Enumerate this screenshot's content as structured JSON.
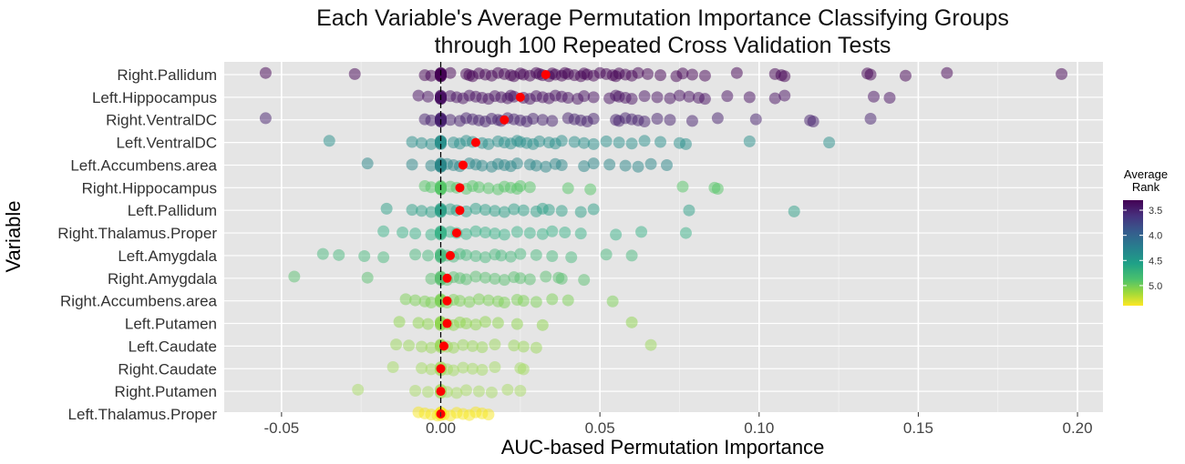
{
  "chart_data": {
    "type": "scatter",
    "title_line1": "Each Variable's Average Permutation Importance Classifying Groups",
    "title_line2": "through 100 Repeated Cross Validation Tests",
    "xlabel": "AUC-based Permutation Importance",
    "ylabel": "Variable",
    "xlim": [
      -0.068,
      0.208
    ],
    "x_ticks": [
      {
        "value": -0.05,
        "label": "-0.05"
      },
      {
        "value": 0.0,
        "label": "0.00"
      },
      {
        "value": 0.05,
        "label": "0.05"
      },
      {
        "value": 0.1,
        "label": "0.10"
      },
      {
        "value": 0.15,
        "label": "0.15"
      },
      {
        "value": 0.2,
        "label": "0.20"
      }
    ],
    "grid": true,
    "background": "#e5e5e5",
    "mean_marker_color": "#ff0000",
    "zero_line": true,
    "legend": {
      "title_line1": "Average",
      "title_line2": "Rank",
      "position": "right",
      "range": [
        3.3,
        5.4
      ],
      "ticks": [
        {
          "value": 3.5,
          "label": "3.5"
        },
        {
          "value": 4.0,
          "label": "4.0"
        },
        {
          "value": 4.5,
          "label": "4.5"
        },
        {
          "value": 5.0,
          "label": "5.0"
        }
      ],
      "colormap": "viridis-reversed"
    },
    "variables": [
      {
        "name": "Right.Pallidum",
        "color": "#440154",
        "mean": 0.033,
        "points": [
          -0.055,
          -0.027,
          -0.005,
          0.0,
          0.0,
          0.0,
          0.0,
          0.0,
          0.0,
          0.0,
          0.0,
          0.0,
          0.0,
          -0.003,
          0.003,
          0.008,
          0.009,
          0.01,
          0.012,
          0.014,
          0.016,
          0.018,
          0.02,
          0.022,
          0.023,
          0.025,
          0.026,
          0.028,
          0.03,
          0.031,
          0.032,
          0.034,
          0.035,
          0.036,
          0.038,
          0.039,
          0.04,
          0.042,
          0.044,
          0.045,
          0.046,
          0.048,
          0.05,
          0.052,
          0.054,
          0.055,
          0.056,
          0.058,
          0.06,
          0.062,
          0.065,
          0.069,
          0.074,
          0.076,
          0.079,
          0.083,
          0.093,
          0.105,
          0.107,
          0.108,
          0.134,
          0.135,
          0.146,
          0.159,
          0.195
        ]
      },
      {
        "name": "Left.Hippocampus",
        "color": "#470f62",
        "mean": 0.025,
        "points": [
          -0.007,
          -0.004,
          0.0,
          0.0,
          0.0,
          0.0,
          0.0,
          0.0,
          0.0,
          0.0,
          0.0,
          0.003,
          0.005,
          0.007,
          0.009,
          0.011,
          0.013,
          0.015,
          0.017,
          0.019,
          0.021,
          0.022,
          0.023,
          0.026,
          0.028,
          0.03,
          0.032,
          0.034,
          0.036,
          0.038,
          0.04,
          0.043,
          0.045,
          0.048,
          0.053,
          0.055,
          0.056,
          0.058,
          0.06,
          0.064,
          0.068,
          0.072,
          0.075,
          0.078,
          0.081,
          0.083,
          0.09,
          0.097,
          0.105,
          0.108,
          0.136,
          0.141
        ]
      },
      {
        "name": "Right.VentralDC",
        "color": "#45206d",
        "mean": 0.02,
        "points": [
          -0.055,
          -0.005,
          -0.003,
          0.0,
          0.0,
          0.0,
          0.0,
          0.0,
          0.0,
          0.0,
          0.0,
          0.0,
          0.003,
          0.006,
          0.008,
          0.01,
          0.012,
          0.014,
          0.016,
          0.018,
          0.019,
          0.021,
          0.023,
          0.025,
          0.027,
          0.029,
          0.032,
          0.035,
          0.04,
          0.042,
          0.044,
          0.046,
          0.048,
          0.055,
          0.056,
          0.058,
          0.06,
          0.062,
          0.064,
          0.068,
          0.072,
          0.079,
          0.087,
          0.099,
          0.116,
          0.117,
          0.135
        ]
      },
      {
        "name": "Left.VentralDC",
        "color": "#2a8f8b",
        "mean": 0.011,
        "points": [
          -0.035,
          -0.009,
          -0.006,
          -0.003,
          0.0,
          0.0,
          0.0,
          0.0,
          0.0,
          0.0,
          0.0,
          0.0,
          0.004,
          0.006,
          0.008,
          0.01,
          0.013,
          0.015,
          0.018,
          0.02,
          0.022,
          0.024,
          0.025,
          0.027,
          0.029,
          0.031,
          0.034,
          0.036,
          0.038,
          0.042,
          0.045,
          0.048,
          0.052,
          0.056,
          0.06,
          0.064,
          0.069,
          0.075,
          0.077,
          0.097,
          0.122
        ]
      },
      {
        "name": "Left.Accumbens.area",
        "color": "#2a8688",
        "mean": 0.007,
        "points": [
          -0.023,
          -0.009,
          -0.003,
          0.0,
          0.0,
          0.0,
          0.0,
          0.0,
          0.0,
          0.0,
          0.0,
          0.002,
          0.004,
          0.006,
          0.009,
          0.011,
          0.013,
          0.016,
          0.018,
          0.02,
          0.022,
          0.024,
          0.028,
          0.03,
          0.033,
          0.036,
          0.038,
          0.045,
          0.048,
          0.053,
          0.058,
          0.062,
          0.066,
          0.071
        ]
      },
      {
        "name": "Right.Hippocampus",
        "color": "#56c667",
        "mean": 0.006,
        "points": [
          -0.005,
          -0.003,
          0.0,
          0.0,
          0.0,
          0.0,
          0.0,
          0.0,
          0.0,
          0.0,
          0.0,
          0.003,
          0.005,
          0.008,
          0.01,
          0.012,
          0.015,
          0.018,
          0.02,
          0.022,
          0.024,
          0.025,
          0.028,
          0.04,
          0.047,
          0.076,
          0.086,
          0.087
        ]
      },
      {
        "name": "Left.Pallidum",
        "color": "#2e9f87",
        "mean": 0.006,
        "points": [
          -0.017,
          -0.009,
          -0.006,
          -0.003,
          0.0,
          0.0,
          0.0,
          0.0,
          0.0,
          0.0,
          0.0,
          0.003,
          0.005,
          0.008,
          0.011,
          0.014,
          0.017,
          0.02,
          0.023,
          0.026,
          0.03,
          0.032,
          0.034,
          0.038,
          0.044,
          0.048,
          0.078,
          0.111
        ]
      },
      {
        "name": "Right.Thalamus.Proper",
        "color": "#3cb38a",
        "mean": 0.005,
        "points": [
          -0.018,
          -0.012,
          -0.008,
          -0.003,
          0.0,
          0.0,
          0.0,
          0.0,
          0.0,
          0.0,
          0.0,
          0.003,
          0.005,
          0.008,
          0.011,
          0.014,
          0.017,
          0.02,
          0.024,
          0.028,
          0.032,
          0.035,
          0.039,
          0.044,
          0.055,
          0.063,
          0.077
        ]
      },
      {
        "name": "Left.Amygdala",
        "color": "#4cba80",
        "mean": 0.003,
        "points": [
          -0.037,
          -0.032,
          -0.024,
          -0.018,
          -0.008,
          -0.004,
          0.0,
          0.0,
          0.0,
          0.0,
          0.0,
          0.0,
          0.002,
          0.004,
          0.006,
          0.008,
          0.011,
          0.014,
          0.017,
          0.019,
          0.022,
          0.025,
          0.03,
          0.035,
          0.041,
          0.052,
          0.06
        ]
      },
      {
        "name": "Right.Amygdala",
        "color": "#5cc071",
        "mean": 0.002,
        "points": [
          -0.046,
          -0.023,
          -0.003,
          0.0,
          0.0,
          0.0,
          0.0,
          0.0,
          0.0,
          0.0,
          0.002,
          0.004,
          0.006,
          0.008,
          0.011,
          0.014,
          0.017,
          0.02,
          0.023,
          0.025,
          0.028,
          0.033,
          0.037,
          0.038,
          0.045
        ]
      },
      {
        "name": "Right.Accumbens.area",
        "color": "#7ed257",
        "mean": 0.002,
        "points": [
          -0.011,
          -0.008,
          -0.005,
          -0.003,
          0.0,
          0.0,
          0.0,
          0.0,
          0.0,
          0.0,
          0.002,
          0.004,
          0.006,
          0.009,
          0.012,
          0.015,
          0.018,
          0.02,
          0.024,
          0.026,
          0.03,
          0.035,
          0.04,
          0.054
        ]
      },
      {
        "name": "Left.Putamen",
        "color": "#90d650",
        "mean": 0.002,
        "points": [
          -0.013,
          -0.007,
          -0.004,
          0.0,
          0.0,
          0.0,
          0.0,
          0.0,
          0.0,
          0.002,
          0.004,
          0.006,
          0.008,
          0.011,
          0.014,
          0.018,
          0.024,
          0.032,
          0.06
        ]
      },
      {
        "name": "Left.Caudate",
        "color": "#9cd85b",
        "mean": 0.001,
        "points": [
          -0.014,
          -0.01,
          -0.006,
          -0.003,
          0.0,
          0.0,
          0.0,
          0.0,
          0.0,
          0.002,
          0.004,
          0.007,
          0.01,
          0.013,
          0.017,
          0.023,
          0.026,
          0.03,
          0.066
        ]
      },
      {
        "name": "Right.Caudate",
        "color": "#a6dc66",
        "mean": 0.0,
        "points": [
          -0.015,
          -0.006,
          -0.003,
          0.0,
          0.0,
          0.0,
          0.0,
          0.0,
          0.0,
          0.002,
          0.004,
          0.007,
          0.01,
          0.013,
          0.017,
          0.025,
          0.026
        ]
      },
      {
        "name": "Right.Putamen",
        "color": "#a9dc67",
        "mean": 0.0,
        "points": [
          -0.026,
          -0.008,
          -0.004,
          0.0,
          0.0,
          0.0,
          0.0,
          0.0,
          0.0,
          0.002,
          0.005,
          0.008,
          0.012,
          0.016,
          0.021,
          0.025
        ]
      },
      {
        "name": "Left.Thalamus.Proper",
        "color": "#f5e51f",
        "mean": 0.0,
        "points": [
          -0.007,
          -0.005,
          -0.003,
          -0.001,
          0.0,
          0.0,
          0.0,
          0.0,
          0.0,
          0.001,
          0.003,
          0.005,
          0.007,
          0.009,
          0.011,
          0.013,
          0.015
        ]
      }
    ]
  }
}
